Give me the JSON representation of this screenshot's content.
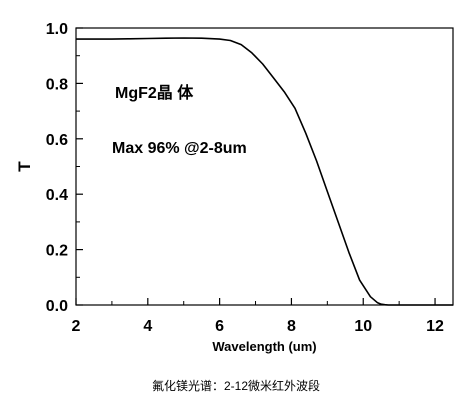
{
  "chart_data": {
    "type": "line",
    "title": "",
    "xlabel": "Wavelength (um)",
    "ylabel": "T",
    "xlim": [
      2,
      12.5
    ],
    "ylim": [
      0,
      1.0
    ],
    "x_ticks": [
      "2",
      "4",
      "6",
      "8",
      "10",
      "12"
    ],
    "y_ticks": [
      "0.0",
      "0.2",
      "0.4",
      "0.6",
      "0.8",
      "1.0"
    ],
    "grid": false,
    "legend": "none",
    "series_color": "#000000",
    "annotations": [
      "MgF2晶 体",
      "Max 96% @2-8um"
    ],
    "caption": "氟化镁光谱：2-12微米红外波段",
    "series": [
      {
        "x": [
          2.0,
          2.5,
          3.0,
          3.5,
          4.0,
          4.5,
          5.0,
          5.5,
          6.0,
          6.3,
          6.6,
          6.9,
          7.2,
          7.5,
          7.8,
          8.1,
          8.4,
          8.7,
          9.0,
          9.3,
          9.6,
          9.9,
          10.2,
          10.4,
          10.5,
          10.6,
          10.7,
          10.8,
          11.0,
          11.5,
          12.0,
          12.5
        ],
        "y": [
          0.96,
          0.96,
          0.96,
          0.961,
          0.962,
          0.963,
          0.964,
          0.963,
          0.96,
          0.955,
          0.94,
          0.91,
          0.87,
          0.82,
          0.77,
          0.71,
          0.62,
          0.52,
          0.41,
          0.3,
          0.19,
          0.09,
          0.03,
          0.008,
          0.003,
          0.001,
          0.0,
          0.0,
          0.0,
          0.0,
          0.0,
          0.0
        ]
      }
    ]
  }
}
